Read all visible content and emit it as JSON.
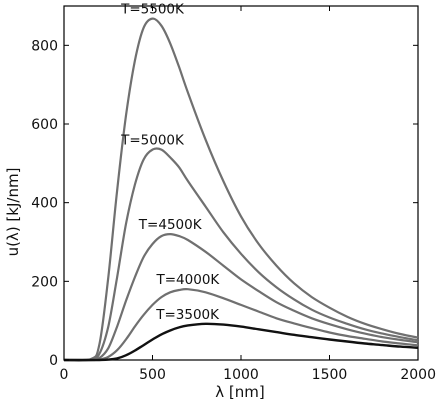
{
  "chart_data": {
    "type": "line",
    "title": "",
    "xlabel": "λ [nm]",
    "ylabel": "u(λ) [kJ/nm]",
    "xlim": [
      0,
      2000
    ],
    "ylim": [
      0,
      900
    ],
    "x_ticks": [
      0,
      500,
      1000,
      1500,
      2000
    ],
    "y_ticks": [
      0,
      200,
      400,
      600,
      800
    ],
    "grid": false,
    "legend": "none",
    "x": [
      0,
      150,
      200,
      250,
      300,
      350,
      400,
      450,
      500,
      550,
      600,
      650,
      700,
      800,
      900,
      1000,
      1100,
      1200,
      1300,
      1400,
      1500,
      1600,
      1700,
      1800,
      1900,
      2000
    ],
    "series": [
      {
        "name": "T=5500K",
        "color": "#707070",
        "values": [
          0,
          2,
          40,
          210,
          430,
          620,
          760,
          845,
          868,
          850,
          805,
          745,
          680,
          560,
          455,
          365,
          295,
          240,
          195,
          160,
          133,
          110,
          92,
          78,
          66,
          57
        ]
      },
      {
        "name": "T=5000K",
        "color": "#707070",
        "values": [
          0,
          1,
          16,
          85,
          210,
          345,
          445,
          510,
          535,
          535,
          515,
          490,
          455,
          390,
          325,
          270,
          223,
          185,
          154,
          128,
          108,
          92,
          78,
          67,
          58,
          50
        ]
      },
      {
        "name": "T=4500K",
        "color": "#707070",
        "values": [
          0,
          0,
          5,
          30,
          85,
          150,
          210,
          262,
          295,
          315,
          320,
          315,
          305,
          275,
          240,
          205,
          175,
          147,
          125,
          106,
          91,
          78,
          67,
          58,
          51,
          45
        ]
      },
      {
        "name": "T=4000K",
        "color": "#707070",
        "values": [
          0,
          0,
          1,
          8,
          25,
          52,
          85,
          115,
          140,
          160,
          172,
          178,
          180,
          172,
          157,
          140,
          123,
          106,
          93,
          81,
          70,
          61,
          54,
          47,
          42,
          37
        ]
      },
      {
        "name": "T=3500K",
        "color": "#111111",
        "values": [
          0,
          0,
          0,
          1,
          4,
          12,
          24,
          38,
          52,
          65,
          75,
          83,
          88,
          92,
          90,
          85,
          78,
          71,
          64,
          58,
          52,
          47,
          42,
          38,
          34,
          31
        ]
      }
    ]
  }
}
